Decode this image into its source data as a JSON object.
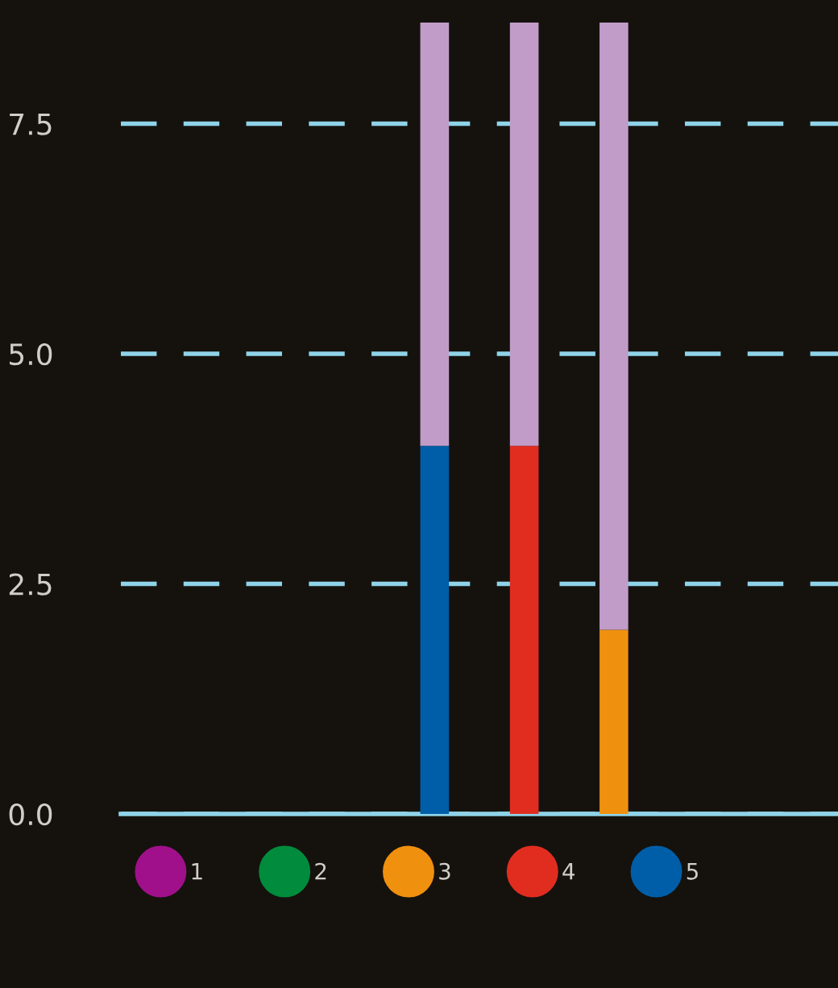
{
  "chart_data": {
    "type": "bar",
    "stacked": true,
    "categories": [
      null,
      null,
      null,
      null,
      null,
      null,
      null,
      null
    ],
    "series": [
      {
        "name": "1",
        "color": "#a0108a",
        "values": [
          null,
          null,
          null,
          null,
          null,
          null,
          null,
          null
        ]
      },
      {
        "name": "2",
        "color": "#008c3c",
        "values": [
          null,
          null,
          null,
          null,
          null,
          null,
          null,
          null
        ]
      },
      {
        "name": "3",
        "color": "#f0900f",
        "values": [
          null,
          null,
          null,
          null,
          null,
          2.0,
          null,
          null
        ]
      },
      {
        "name": "4",
        "color": "#e12d20",
        "values": [
          null,
          null,
          null,
          null,
          4.0,
          null,
          null,
          null
        ]
      },
      {
        "name": "5",
        "color": "#005ea8",
        "values": [
          null,
          null,
          null,
          4.0,
          null,
          null,
          null,
          null
        ]
      },
      {
        "color": "#c19cc8",
        "values": [
          null,
          null,
          null,
          4.6,
          4.6,
          6.6,
          null,
          null
        ]
      }
    ],
    "ylim": [
      0,
      8.8
    ],
    "yticks": [
      {
        "value": 0.0,
        "label": "0.0"
      },
      {
        "value": 2.5,
        "label": "2.5"
      },
      {
        "value": 5.0,
        "label": "5.0"
      },
      {
        "value": 7.5,
        "label": "7.5"
      }
    ],
    "grid": "y",
    "line_style": "dashed",
    "legend": "bottom"
  }
}
